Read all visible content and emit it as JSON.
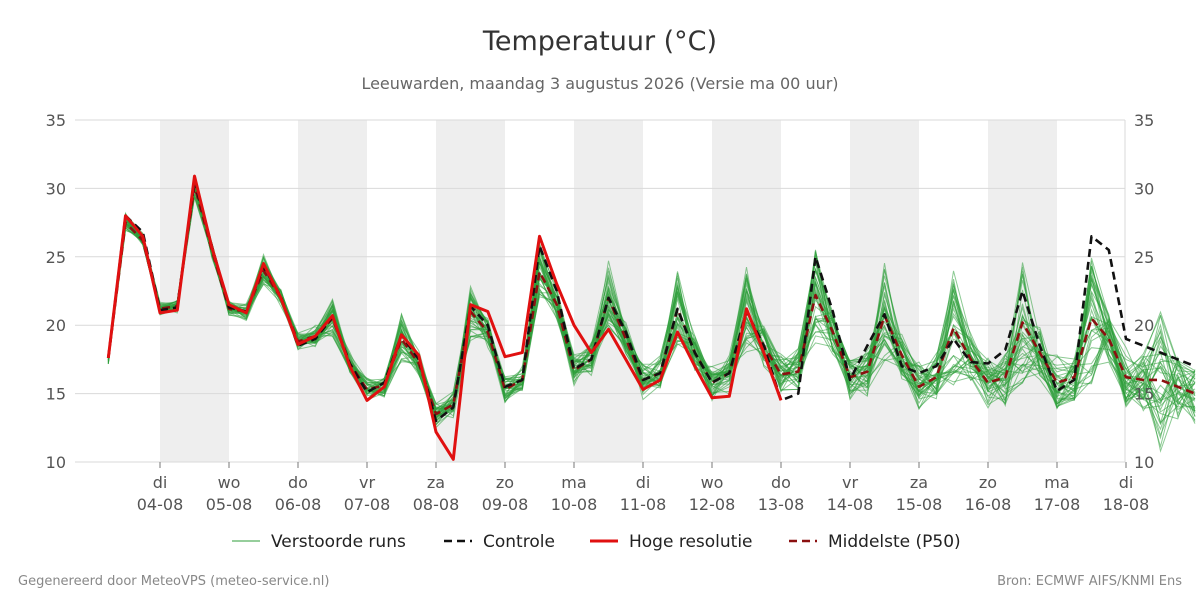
{
  "chart_data": {
    "type": "line",
    "title": "Temperatuur (°C)",
    "subtitle": "Leeuwarden, maandag  3 augustus 2026 (Versie ma 00 uur)",
    "xlabel": "",
    "ylabel": "",
    "ylim": [
      10,
      35
    ],
    "yticks": [
      10,
      15,
      20,
      25,
      30,
      35
    ],
    "xlim": [
      -0.75,
      15.0
    ],
    "grid": true,
    "legend_position": "bottom",
    "day_ticks": [
      {
        "day": "di",
        "date": "04-08"
      },
      {
        "day": "wo",
        "date": "05-08"
      },
      {
        "day": "do",
        "date": "06-08"
      },
      {
        "day": "vr",
        "date": "07-08"
      },
      {
        "day": "za",
        "date": "08-08"
      },
      {
        "day": "zo",
        "date": "09-08"
      },
      {
        "day": "ma",
        "date": "10-08"
      },
      {
        "day": "di",
        "date": "11-08"
      },
      {
        "day": "wo",
        "date": "12-08"
      },
      {
        "day": "do",
        "date": "13-08"
      },
      {
        "day": "vr",
        "date": "14-08"
      },
      {
        "day": "za",
        "date": "15-08"
      },
      {
        "day": "zo",
        "date": "16-08"
      },
      {
        "day": "ma",
        "date": "17-08"
      },
      {
        "day": "di",
        "date": "18-08"
      }
    ],
    "x": [
      -0.75,
      -0.5,
      -0.25,
      0,
      0.25,
      0.5,
      0.75,
      1,
      1.25,
      1.5,
      1.75,
      2,
      2.25,
      2.5,
      2.75,
      3,
      3.25,
      3.5,
      3.75,
      4,
      4.25,
      4.5,
      4.75,
      5,
      5.25,
      5.5,
      5.75,
      6,
      6.25,
      6.5,
      6.75,
      7,
      7.25,
      7.5,
      7.75,
      8,
      8.25,
      8.5,
      8.75,
      9,
      9.25,
      9.5,
      9.75,
      10,
      10.25,
      10.5,
      10.75,
      11,
      11.25,
      11.5,
      11.75,
      12,
      12.25,
      12.5,
      12.75,
      13,
      13.25,
      13.5,
      13.75,
      14,
      14.25,
      14.5,
      14.75,
      15
    ],
    "series": [
      {
        "name": "Verstoorde runs",
        "color": "#2e9e3a",
        "style": "thin",
        "description_values": "ensemble members spread around median"
      },
      {
        "name": "Controle",
        "color": "#111111",
        "style": "dashed",
        "values": [
          17.6,
          28.0,
          26.8,
          21.1,
          21.3,
          30.5,
          25.8,
          21.3,
          21.0,
          24.3,
          22.1,
          18.5,
          19.0,
          20.6,
          17.2,
          15.1,
          15.8,
          19.3,
          17.5,
          13.0,
          14.0,
          21.4,
          20.0,
          15.5,
          16.0,
          25.8,
          22.5,
          16.8,
          17.5,
          22.0,
          19.5,
          16.0,
          16.5,
          21.2,
          18.0,
          15.8,
          16.5,
          21.0,
          18.5,
          14.5,
          15.0,
          25.0,
          21.0,
          16.0,
          18.5,
          20.8,
          17.0,
          16.5,
          17.0,
          19.0,
          17.3,
          17.2,
          18.2,
          22.5,
          18.5,
          15.2,
          16.0,
          26.5,
          25.5,
          19.0,
          18.5,
          18.0,
          17.5,
          17.0
        ]
      },
      {
        "name": "Hoge resolutie",
        "color": "#e01010",
        "style": "thick",
        "values": [
          17.6,
          28.0,
          26.5,
          20.9,
          21.1,
          30.9,
          25.7,
          21.5,
          20.9,
          24.5,
          22.0,
          18.6,
          19.2,
          20.7,
          17.0,
          14.5,
          15.5,
          19.3,
          17.8,
          12.2,
          10.2,
          21.5,
          21.0,
          17.7,
          18.0,
          26.5,
          23.0,
          20.0,
          18.0,
          19.7,
          17.5,
          15.3,
          16.0,
          19.5,
          17.0,
          14.7,
          14.8,
          21.2,
          18.0,
          14.5,
          null,
          null,
          null,
          null,
          null,
          null,
          null,
          null,
          null,
          null,
          null,
          null,
          null,
          null,
          null,
          null,
          null,
          null,
          null,
          null,
          null,
          null,
          null,
          null
        ]
      },
      {
        "name": "Middelste (P50)",
        "color": "#8b1010",
        "style": "dashed",
        "values": [
          17.6,
          27.5,
          26.2,
          21.2,
          21.4,
          30.2,
          25.5,
          21.2,
          21.0,
          24.0,
          22.0,
          18.8,
          19.2,
          20.5,
          17.2,
          15.3,
          15.6,
          19.0,
          17.2,
          13.5,
          14.2,
          21.0,
          19.5,
          15.3,
          16.0,
          23.9,
          21.5,
          16.7,
          17.5,
          22.0,
          19.0,
          16.0,
          16.5,
          21.2,
          18.0,
          15.8,
          16.5,
          21.0,
          18.5,
          16.4,
          16.6,
          22.2,
          19.5,
          16.2,
          16.6,
          20.7,
          17.8,
          15.5,
          16.2,
          19.8,
          17.5,
          15.8,
          16.2,
          20.2,
          18.0,
          15.8,
          16.2,
          20.5,
          19.0,
          16.2,
          16.0,
          16.0,
          15.5,
          15.0
        ]
      }
    ],
    "legend": [
      {
        "label": "Verstoorde runs",
        "color": "#2e9e3a",
        "style": "thin"
      },
      {
        "label": "Controle",
        "color": "#111111",
        "style": "dashed"
      },
      {
        "label": "Hoge resolutie",
        "color": "#e01010",
        "style": "thick"
      },
      {
        "label": "Middelste (P50)",
        "color": "#8b1010",
        "style": "dashed"
      }
    ]
  },
  "footer": {
    "left": "Gegenereerd door MeteoVPS (meteo-service.nl)",
    "right": "Bron: ECMWF AIFS/KNMI Ens"
  }
}
